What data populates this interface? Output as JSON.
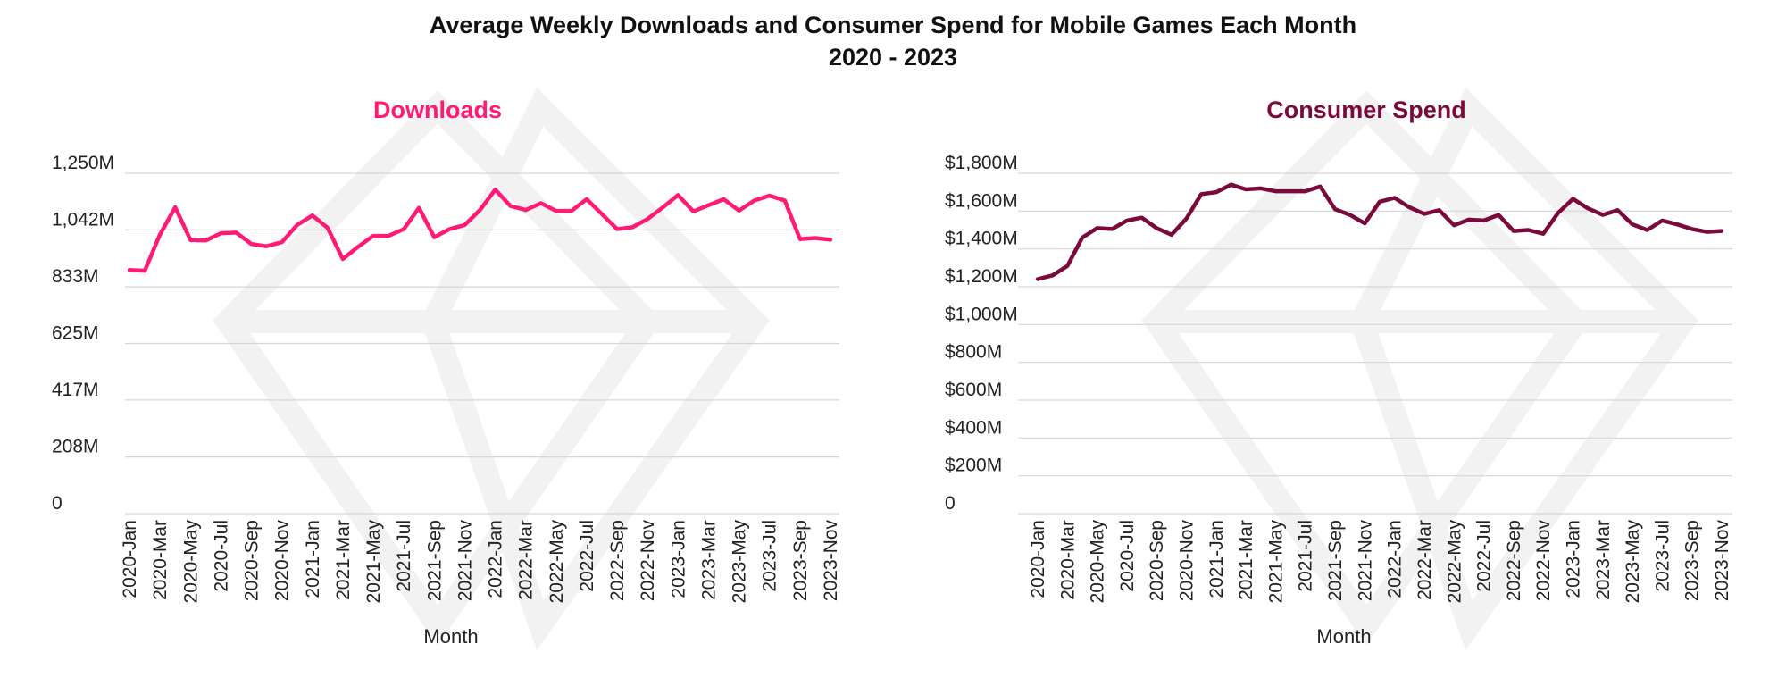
{
  "title": {
    "line1": "Average Weekly Downloads and Consumer Spend for Mobile Games Each Month",
    "line2": "2020 - 2023"
  },
  "colors": {
    "downloads": "#ff1a75",
    "spend": "#7a0a3c",
    "grid": "#d6d6d6",
    "watermark": "#f2f2f2"
  },
  "chart_data": [
    {
      "type": "line",
      "title": "Downloads",
      "xlabel": "Month",
      "ylabel": "",
      "ylim": [
        0,
        1250
      ],
      "y_ticks": [
        {
          "value": 0,
          "label": "0"
        },
        {
          "value": 208,
          "label": "208M"
        },
        {
          "value": 417,
          "label": "417M"
        },
        {
          "value": 625,
          "label": "625M"
        },
        {
          "value": 833,
          "label": "833M"
        },
        {
          "value": 1042,
          "label": "1,042M"
        },
        {
          "value": 1250,
          "label": "1,250M"
        }
      ],
      "x_tick_labels": [
        "2020-Jan",
        "2020-Mar",
        "2020-May",
        "2020-Jul",
        "2020-Sep",
        "2020-Nov",
        "2021-Jan",
        "2021-Mar",
        "2021-May",
        "2021-Jul",
        "2021-Sep",
        "2021-Nov",
        "2022-Jan",
        "2022-Mar",
        "2022-May",
        "2022-Jul",
        "2022-Sep",
        "2022-Nov",
        "2023-Jan",
        "2023-Mar",
        "2023-May",
        "2023-Jul",
        "2023-Sep",
        "2023-Nov"
      ],
      "series": [
        {
          "name": "Downloads",
          "unit": "M",
          "values": [
            895,
            892,
            1025,
            1125,
            1005,
            1003,
            1030,
            1032,
            990,
            982,
            997,
            1060,
            1095,
            1050,
            935,
            980,
            1020,
            1020,
            1045,
            1123,
            1015,
            1045,
            1060,
            1115,
            1190,
            1130,
            1115,
            1140,
            1112,
            1112,
            1155,
            1100,
            1045,
            1052,
            1082,
            1125,
            1170,
            1110,
            1133,
            1155,
            1113,
            1150,
            1168,
            1150,
            1008,
            1012,
            1006
          ]
        }
      ]
    },
    {
      "type": "line",
      "title": "Consumer Spend",
      "xlabel": "Month",
      "ylabel": "",
      "ylim": [
        0,
        1800
      ],
      "y_ticks": [
        {
          "value": 0,
          "label": "0"
        },
        {
          "value": 200,
          "label": "$200M"
        },
        {
          "value": 400,
          "label": "$400M"
        },
        {
          "value": 600,
          "label": "$600M"
        },
        {
          "value": 800,
          "label": "$800M"
        },
        {
          "value": 1000,
          "label": "$1,000M"
        },
        {
          "value": 1200,
          "label": "$1,200M"
        },
        {
          "value": 1400,
          "label": "$1,400M"
        },
        {
          "value": 1600,
          "label": "$1,600M"
        },
        {
          "value": 1800,
          "label": "$1,800M"
        }
      ],
      "x_tick_labels": [
        "2020-Jan",
        "2020-Mar",
        "2020-May",
        "2020-Jul",
        "2020-Sep",
        "2020-Nov",
        "2021-Jan",
        "2021-Mar",
        "2021-May",
        "2021-Jul",
        "2021-Sep",
        "2021-Nov",
        "2022-Jan",
        "2022-Mar",
        "2022-May",
        "2022-Jul",
        "2022-Sep",
        "2022-Nov",
        "2023-Jan",
        "2023-Mar",
        "2023-May",
        "2023-Jul",
        "2023-Sep",
        "2023-Nov"
      ],
      "series": [
        {
          "name": "Consumer Spend",
          "unit": "$M",
          "values": [
            1240,
            1260,
            1310,
            1460,
            1510,
            1505,
            1550,
            1565,
            1510,
            1475,
            1560,
            1690,
            1700,
            1740,
            1715,
            1720,
            1705,
            1705,
            1705,
            1730,
            1610,
            1580,
            1535,
            1650,
            1670,
            1620,
            1585,
            1605,
            1525,
            1555,
            1550,
            1580,
            1495,
            1500,
            1480,
            1590,
            1665,
            1615,
            1580,
            1605,
            1530,
            1500,
            1550,
            1530,
            1505,
            1490,
            1495
          ]
        }
      ]
    }
  ]
}
